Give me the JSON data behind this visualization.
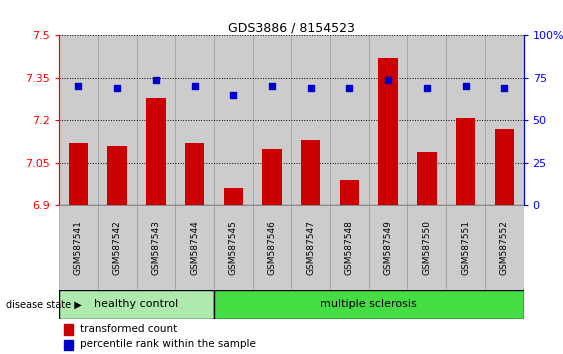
{
  "title": "GDS3886 / 8154523",
  "categories": [
    "GSM587541",
    "GSM587542",
    "GSM587543",
    "GSM587544",
    "GSM587545",
    "GSM587546",
    "GSM587547",
    "GSM587548",
    "GSM587549",
    "GSM587550",
    "GSM587551",
    "GSM587552"
  ],
  "bar_values": [
    7.12,
    7.11,
    7.28,
    7.12,
    6.96,
    7.1,
    7.13,
    6.99,
    7.42,
    7.09,
    7.21,
    7.17
  ],
  "percentile_values": [
    70,
    69,
    74,
    70,
    65,
    70,
    69,
    69,
    74,
    69,
    70,
    69
  ],
  "ylim_left": [
    6.9,
    7.5
  ],
  "ylim_right": [
    0,
    100
  ],
  "yticks_left": [
    6.9,
    7.05,
    7.2,
    7.35,
    7.5
  ],
  "yticks_right": [
    0,
    25,
    50,
    75,
    100
  ],
  "ytick_labels_left": [
    "6.9",
    "7.05",
    "7.2",
    "7.35",
    "7.5"
  ],
  "ytick_labels_right": [
    "0",
    "25",
    "50",
    "75",
    "100%"
  ],
  "bar_color": "#cc0000",
  "dot_color": "#0000cc",
  "healthy_color": "#aeeaae",
  "ms_color": "#44dd44",
  "healthy_label": "healthy control",
  "ms_label": "multiple sclerosis",
  "healthy_count": 4,
  "ms_count": 8,
  "legend_bar_label": "transformed count",
  "legend_dot_label": "percentile rank within the sample",
  "disease_state_label": "disease state",
  "col_bg_color": "#cccccc",
  "col_border_color": "#999999"
}
